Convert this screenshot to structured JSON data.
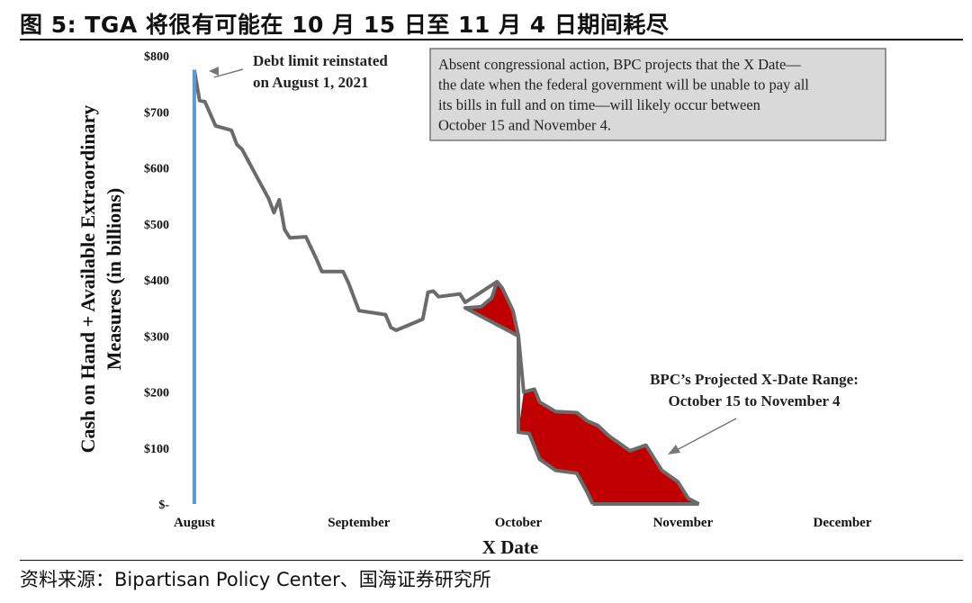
{
  "header": {
    "figure_title": "图 5:  TGA 将很有可能在 10 月 15 日至 11 月 4 日期间耗尽"
  },
  "source_line": "资料来源：Bipartisan Policy Center、国海证券研究所",
  "chart_data": {
    "type": "area",
    "title": "",
    "xlabel": "X Date",
    "ylabel": "Cash on Hand + Available Extraordinary Measures (in billions)",
    "ylim": [
      0,
      800
    ],
    "xlim": [
      "2021-07-31",
      "2021-12-01"
    ],
    "y_ticks": [
      {
        "value": 0,
        "label": "$-"
      },
      {
        "value": 100,
        "label": "$100"
      },
      {
        "value": 200,
        "label": "$200"
      },
      {
        "value": 300,
        "label": "$300"
      },
      {
        "value": 400,
        "label": "$400"
      },
      {
        "value": 500,
        "label": "$500"
      },
      {
        "value": 600,
        "label": "$600"
      },
      {
        "value": 700,
        "label": "$700"
      },
      {
        "value": 800,
        "label": "$800"
      }
    ],
    "x_ticks": [
      {
        "date": "2021-08-01",
        "label": "August"
      },
      {
        "date": "2021-09-01",
        "label": "September"
      },
      {
        "date": "2021-10-01",
        "label": "October"
      },
      {
        "date": "2021-11-01",
        "label": "November"
      },
      {
        "date": "2021-12-01",
        "label": "December"
      }
    ],
    "colors": {
      "line": "#6b6b6b",
      "reinstatement_bar": "#5b9bd5",
      "range_fill": "#c00000",
      "annotation_box_fill": "#d9d9d9"
    },
    "grid": false,
    "reinstatement": {
      "date": "2021-08-01",
      "value": 775
    },
    "series_upper": [
      {
        "date": "2021-08-01",
        "value": 775
      },
      {
        "date": "2021-08-02",
        "value": 720
      },
      {
        "date": "2021-08-03",
        "value": 718
      },
      {
        "date": "2021-08-05",
        "value": 675
      },
      {
        "date": "2021-08-08",
        "value": 667
      },
      {
        "date": "2021-08-09",
        "value": 642
      },
      {
        "date": "2021-08-10",
        "value": 633
      },
      {
        "date": "2021-08-13",
        "value": 580
      },
      {
        "date": "2021-08-15",
        "value": 545
      },
      {
        "date": "2021-08-16",
        "value": 520
      },
      {
        "date": "2021-08-17",
        "value": 543
      },
      {
        "date": "2021-08-18",
        "value": 490
      },
      {
        "date": "2021-08-19",
        "value": 475
      },
      {
        "date": "2021-08-22",
        "value": 477
      },
      {
        "date": "2021-08-24",
        "value": 437
      },
      {
        "date": "2021-08-25",
        "value": 415
      },
      {
        "date": "2021-08-29",
        "value": 415
      },
      {
        "date": "2021-08-30",
        "value": 395
      },
      {
        "date": "2021-09-01",
        "value": 345
      },
      {
        "date": "2021-09-06",
        "value": 338
      },
      {
        "date": "2021-09-07",
        "value": 315
      },
      {
        "date": "2021-09-08",
        "value": 310
      },
      {
        "date": "2021-09-13",
        "value": 330
      },
      {
        "date": "2021-09-14",
        "value": 378
      },
      {
        "date": "2021-09-15",
        "value": 380
      },
      {
        "date": "2021-09-16",
        "value": 370
      },
      {
        "date": "2021-09-20",
        "value": 375
      },
      {
        "date": "2021-09-21",
        "value": 360
      },
      {
        "date": "2021-09-23",
        "value": 372
      },
      {
        "date": "2021-09-27",
        "value": 397
      },
      {
        "date": "2021-09-28",
        "value": 385
      },
      {
        "date": "2021-09-30",
        "value": 345
      },
      {
        "date": "2021-10-01",
        "value": 300
      },
      {
        "date": "2021-10-02",
        "value": 200
      },
      {
        "date": "2021-10-04",
        "value": 205
      },
      {
        "date": "2021-10-05",
        "value": 182
      },
      {
        "date": "2021-10-08",
        "value": 165
      },
      {
        "date": "2021-10-12",
        "value": 163
      },
      {
        "date": "2021-10-14",
        "value": 148
      },
      {
        "date": "2021-10-16",
        "value": 140
      },
      {
        "date": "2021-10-18",
        "value": 122
      },
      {
        "date": "2021-10-22",
        "value": 95
      },
      {
        "date": "2021-10-25",
        "value": 105
      },
      {
        "date": "2021-10-28",
        "value": 60
      },
      {
        "date": "2021-10-31",
        "value": 40
      },
      {
        "date": "2021-11-02",
        "value": 10
      },
      {
        "date": "2021-11-03",
        "value": 5
      },
      {
        "date": "2021-11-04",
        "value": 0
      }
    ],
    "series_lower": [
      {
        "date": "2021-09-27",
        "value": 397
      },
      {
        "date": "2021-09-26",
        "value": 368
      },
      {
        "date": "2021-09-24",
        "value": 352
      },
      {
        "date": "2021-09-21",
        "value": 350
      },
      {
        "date": "2021-10-01",
        "value": 300
      },
      {
        "date": "2021-10-01",
        "value": 128
      },
      {
        "date": "2021-10-03",
        "value": 126
      },
      {
        "date": "2021-10-05",
        "value": 80
      },
      {
        "date": "2021-10-08",
        "value": 60
      },
      {
        "date": "2021-10-12",
        "value": 55
      },
      {
        "date": "2021-10-14",
        "value": 20
      },
      {
        "date": "2021-10-15",
        "value": 0
      }
    ],
    "annotations": [
      {
        "text_lines": [
          "Debt limit reinstated",
          "on August 1, 2021"
        ],
        "points_to": {
          "date": "2021-08-01",
          "value": 765
        }
      },
      {
        "text_lines": [
          "BPC’s Projected X-Date Range:",
          "October 15 to November 4"
        ],
        "points_to": {
          "date": "2021-10-25",
          "value": 90
        }
      },
      {
        "text_lines": [
          "Absent congressional action, BPC projects that the X Date—",
          "the date when the federal government will be unable to pay all",
          "its bills in full and on time—will likely occur between",
          "October 15 and November 4."
        ],
        "boxed": true
      }
    ]
  }
}
